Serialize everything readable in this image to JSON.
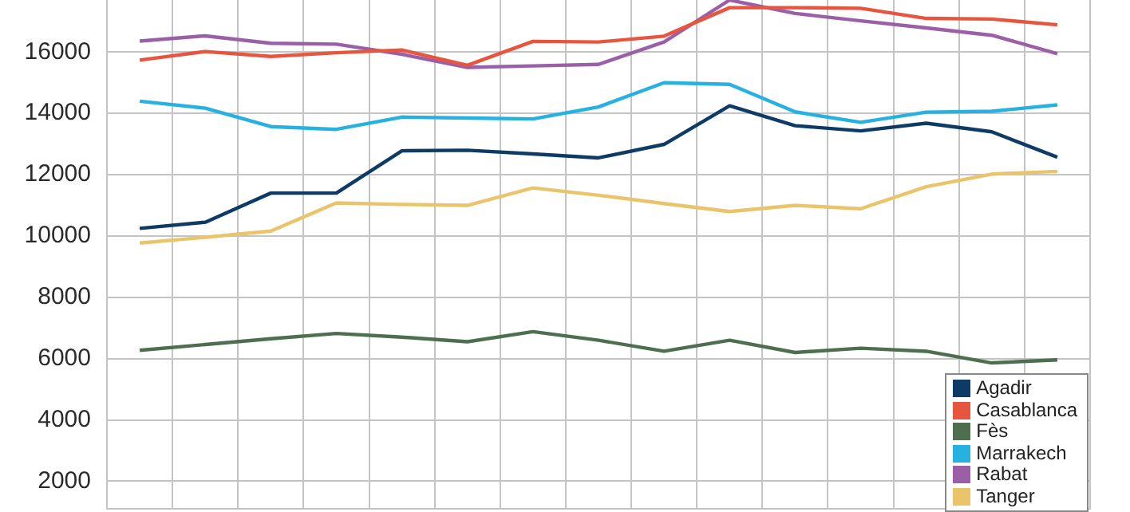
{
  "chart_data": {
    "type": "line",
    "categories": [
      null,
      null,
      null,
      null,
      null,
      null,
      null,
      null,
      null,
      null,
      null,
      null,
      null,
      null,
      null
    ],
    "series": [
      {
        "name": "Agadir",
        "color": "#0d3b66",
        "values": [
          10250,
          10450,
          11400,
          11400,
          12780,
          12800,
          12680,
          12550,
          12990,
          14250,
          13600,
          13430,
          13680,
          13400,
          12570
        ]
      },
      {
        "name": "Casablanca",
        "color": "#e8553e",
        "values": [
          15740,
          16020,
          15860,
          15980,
          16070,
          15570,
          16350,
          16330,
          16520,
          17450,
          17450,
          17430,
          17100,
          17080,
          16890
        ]
      },
      {
        "name": "Fès",
        "color": "#4e6e50",
        "values": [
          6270,
          6460,
          6650,
          6820,
          6700,
          6550,
          6880,
          6600,
          6240,
          6600,
          6200,
          6340,
          6240,
          5860,
          5960
        ]
      },
      {
        "name": "Marrakech",
        "color": "#27b1e0",
        "values": [
          14400,
          14170,
          13570,
          13480,
          13880,
          13850,
          13820,
          14210,
          15000,
          14950,
          14050,
          13710,
          14040,
          14070,
          14280
        ]
      },
      {
        "name": "Rabat",
        "color": "#9b5fa8",
        "values": [
          16360,
          16530,
          16290,
          16260,
          15930,
          15500,
          15550,
          15600,
          16330,
          17700,
          17260,
          17020,
          16790,
          16550,
          15950
        ]
      },
      {
        "name": "Tanger",
        "color": "#eac46a",
        "values": [
          9770,
          9960,
          10160,
          11080,
          11030,
          11000,
          11570,
          11330,
          11060,
          10800,
          11000,
          10890,
          11610,
          12020,
          12110
        ]
      }
    ],
    "ylim": [
      1100,
      17700
    ],
    "yticks": [
      2000,
      4000,
      6000,
      8000,
      10000,
      12000,
      14000,
      16000
    ],
    "grid": true,
    "legend": "bottom right",
    "tick_labels": "y",
    "marker": "none",
    "line_style": "solid"
  }
}
